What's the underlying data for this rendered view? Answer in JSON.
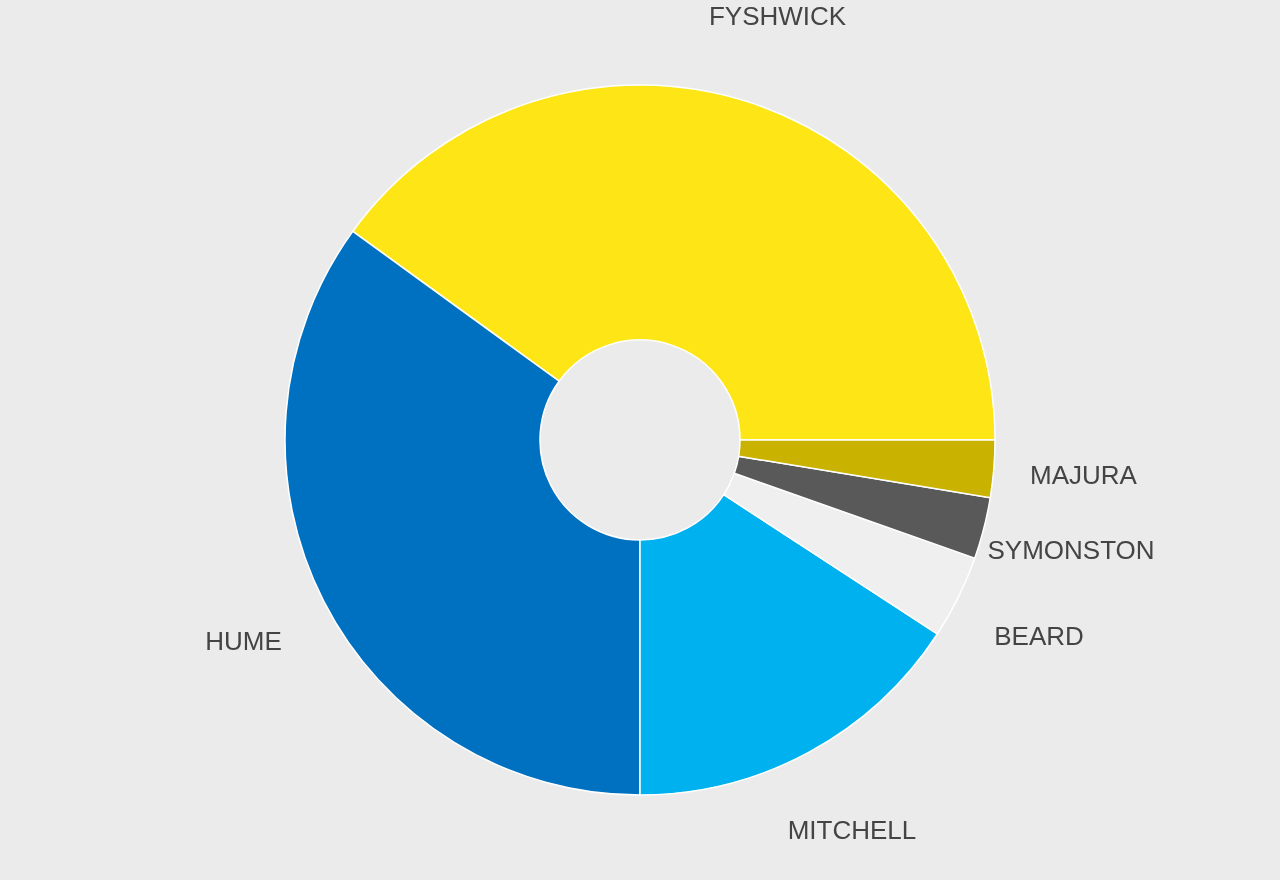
{
  "chart_data": {
    "type": "donut",
    "categories": [
      "FYSHWICK",
      "HUME",
      "MITCHELL",
      "BEARD",
      "SYMONSTON",
      "MAJURA"
    ],
    "values": [
      40.0,
      35.0,
      15.8,
      3.8,
      2.8,
      2.6
    ],
    "colors": [
      "#fde516",
      "#0071c1",
      "#00b1f0",
      "#efefef",
      "#595959",
      "#c9b200"
    ],
    "legend": false
  }
}
